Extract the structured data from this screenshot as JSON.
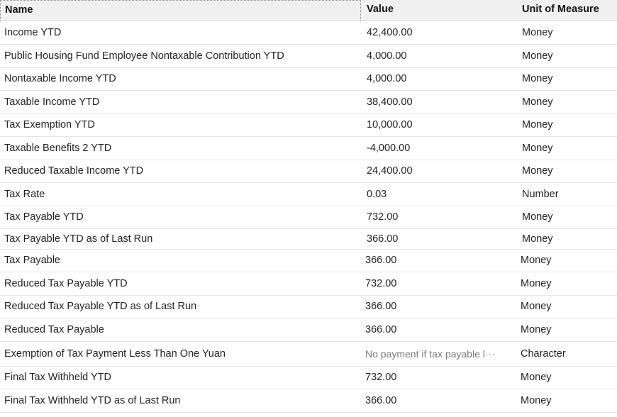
{
  "columns": {
    "name": "Name",
    "value": "Value",
    "uom": "Unit of Measure"
  },
  "rows": [
    {
      "name": "Income YTD",
      "value": "42,400.00",
      "uom": "Money"
    },
    {
      "name": "Public Housing Fund Employee Nontaxable Contribution YTD",
      "value": "4,000.00",
      "uom": "Money"
    },
    {
      "name": "Nontaxable Income YTD",
      "value": "4,000.00",
      "uom": "Money"
    },
    {
      "name": "Taxable Income YTD",
      "value": "38,400.00",
      "uom": "Money"
    },
    {
      "name": "Tax Exemption YTD",
      "value": "10,000.00",
      "uom": "Money"
    },
    {
      "name": "Taxable Benefits 2 YTD",
      "value": "-4,000.00",
      "uom": "Money"
    },
    {
      "name": "Reduced Taxable Income YTD",
      "value": "24,400.00",
      "uom": "Money"
    },
    {
      "name": "Tax Rate",
      "value": "0.03",
      "uom": "Number"
    },
    {
      "name": "Tax Payable YTD",
      "value": "732.00",
      "uom": "Money"
    },
    {
      "name": "Tax Payable YTD as of Last Run",
      "value": "366.00",
      "uom": "Money"
    },
    {
      "name": "Tax Payable",
      "value": "366.00",
      "uom": "Money"
    },
    {
      "name": "Reduced Tax Payable YTD",
      "value": "732.00",
      "uom": "Money"
    },
    {
      "name": "Reduced Tax Payable YTD as of Last Run",
      "value": "366.00",
      "uom": "Money"
    },
    {
      "name": "Reduced Tax Payable",
      "value": "366.00",
      "uom": "Money"
    },
    {
      "name": "Exemption of Tax Payment Less Than One Yuan",
      "value": "No payment if tax payable l···",
      "uom": "Character"
    },
    {
      "name": "Final Tax Withheld YTD",
      "value": "732.00",
      "uom": "Money"
    },
    {
      "name": "Final Tax Withheld YTD as of Last Run",
      "value": "366.00",
      "uom": "Money"
    }
  ]
}
